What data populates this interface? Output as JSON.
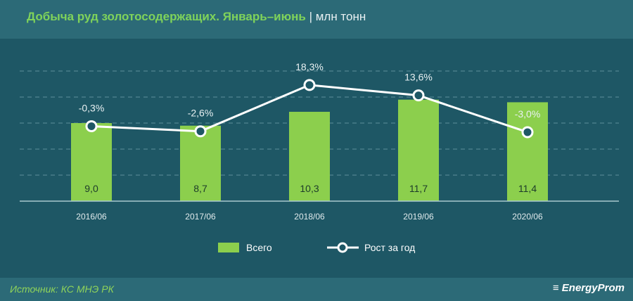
{
  "header": {
    "title": "Добыча руд золотосодержащих. Январь–июнь",
    "unit": "| млн тонн"
  },
  "footer": {
    "source": "Источник: КС МНЭ РК",
    "logo": "EnergyProm"
  },
  "colors": {
    "bar": "#8ccf4d",
    "line": "#ffffff",
    "background": "#1e5765"
  },
  "chart_data": {
    "type": "bar",
    "title": "Добыча руд золотосодержащих. Январь–июнь",
    "ylabel": "млн тонн",
    "categories": [
      "2016/06",
      "2017/06",
      "2018/06",
      "2019/06",
      "2020/06"
    ],
    "series": [
      {
        "name": "Всего",
        "type": "bar",
        "values": [
          9.0,
          8.7,
          10.3,
          11.7,
          11.4
        ],
        "labels": [
          "9,0",
          "8,7",
          "10,3",
          "11,7",
          "11,4"
        ]
      },
      {
        "name": "Рост за год",
        "type": "line",
        "values": [
          -0.3,
          -2.6,
          18.3,
          13.6,
          -3.0
        ],
        "labels": [
          "-0,3%",
          "-2,6%",
          "18,3%",
          "13,6%",
          "-3,0%"
        ]
      }
    ],
    "ylim": [
      0,
      15
    ],
    "grid": true,
    "legend": "bottom"
  }
}
